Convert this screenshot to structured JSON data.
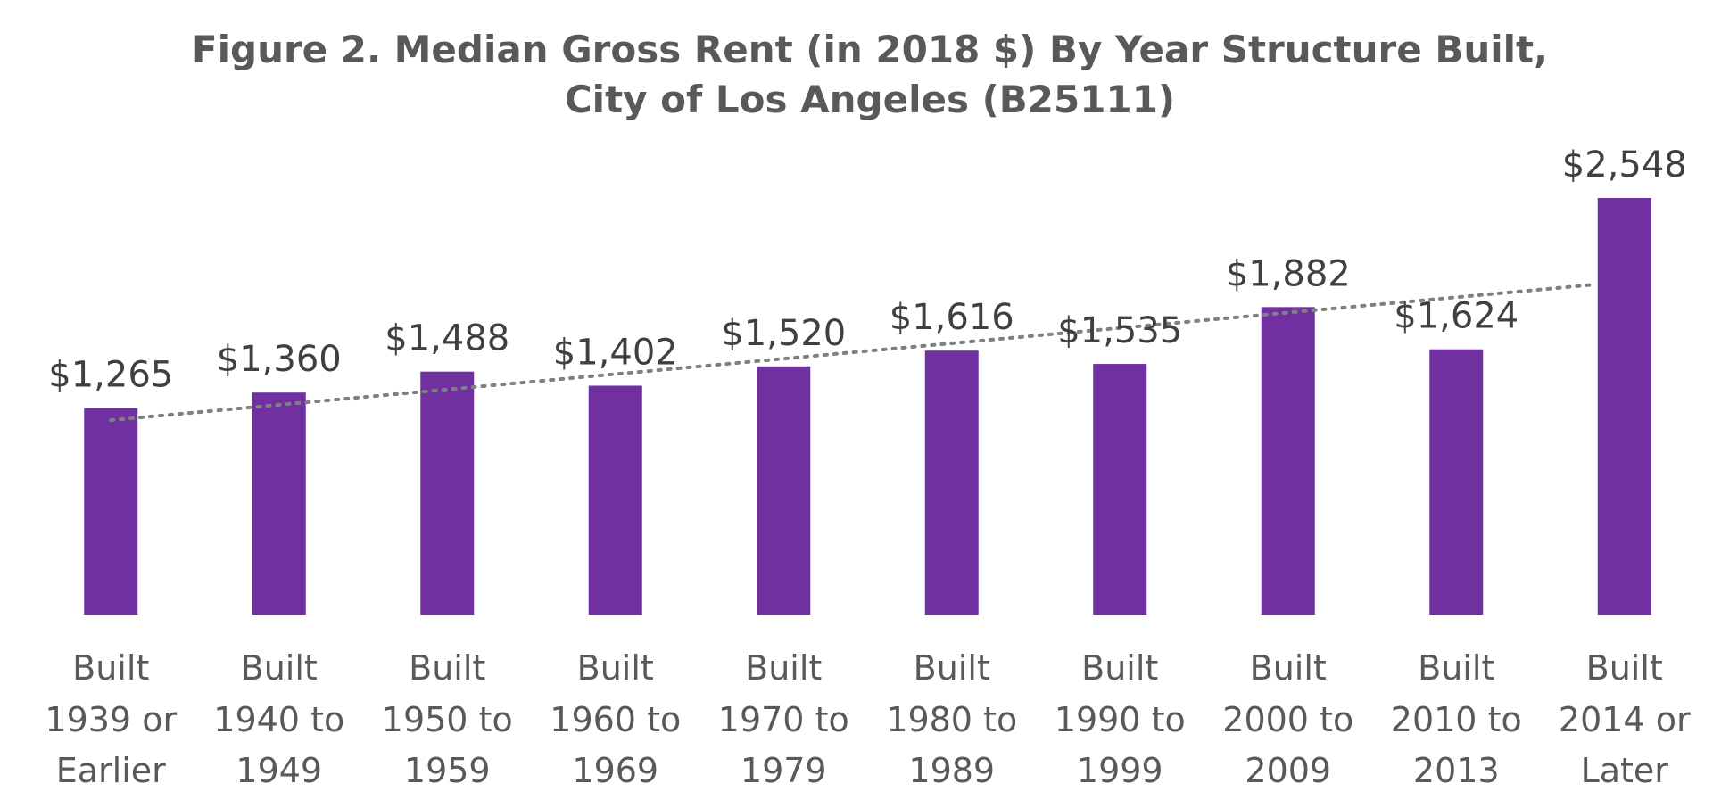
{
  "chart_data": {
    "type": "bar",
    "title_lines": [
      "Figure 2. Median Gross Rent (in 2018 $) By Year Structure Built,",
      "City of Los Angeles (B25111)"
    ],
    "categories": [
      [
        "Built",
        "1939 or",
        "Earlier"
      ],
      [
        "Built",
        "1940 to",
        "1949"
      ],
      [
        "Built",
        "1950 to",
        "1959"
      ],
      [
        "Built",
        "1960 to",
        "1969"
      ],
      [
        "Built",
        "1970 to",
        "1979"
      ],
      [
        "Built",
        "1980 to",
        "1989"
      ],
      [
        "Built",
        "1990 to",
        "1999"
      ],
      [
        "Built",
        "2000 to",
        "2009"
      ],
      [
        "Built",
        "2010 to",
        "2013"
      ],
      [
        "Built",
        "2014 or",
        "Later"
      ]
    ],
    "values": [
      1265,
      1360,
      1488,
      1402,
      1520,
      1616,
      1535,
      1882,
      1624,
      2548
    ],
    "data_labels": [
      "$1,265",
      "$1,360",
      "$1,488",
      "$1,402",
      "$1,520",
      "$1,616",
      "$1,535",
      "$1,882",
      "$1,624",
      "$2,548"
    ],
    "ylim": [
      0,
      2548
    ],
    "trendline": "linear",
    "grid": false,
    "legend": "none",
    "colors": {
      "bar": "#7030A0",
      "trendline": "#808080",
      "title": "#595959",
      "label": "#404040",
      "category": "#595959"
    }
  }
}
